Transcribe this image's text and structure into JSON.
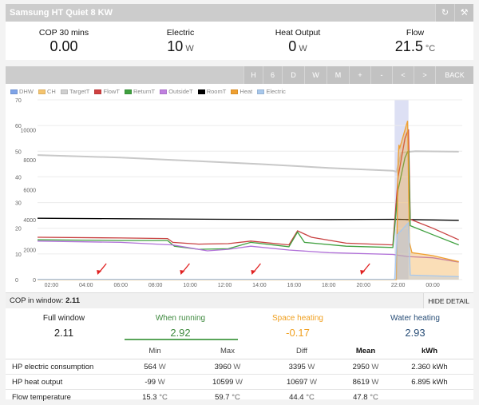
{
  "window": {
    "title": "Samsung HT Quiet 8 KW",
    "refresh_icon": "refresh-icon",
    "settings_icon": "wrench-icon"
  },
  "stats": [
    {
      "label": "COP 30 mins",
      "value": "0.00",
      "unit": ""
    },
    {
      "label": "Electric",
      "value": "10",
      "unit": "W"
    },
    {
      "label": "Heat Output",
      "value": "0",
      "unit": "W"
    },
    {
      "label": "Flow",
      "value": "21.5",
      "unit": "°C"
    }
  ],
  "nav": [
    "H",
    "6",
    "D",
    "W",
    "M",
    "+",
    "-",
    "<",
    ">",
    "BACK"
  ],
  "legend": [
    {
      "name": "DHW",
      "color": "#7fa4e8"
    },
    {
      "name": "CH",
      "color": "#f5c46e"
    },
    {
      "name": "TargetT",
      "color": "#d0d0d0"
    },
    {
      "name": "FlowT",
      "color": "#d04040"
    },
    {
      "name": "ReturnT",
      "color": "#3fa03f"
    },
    {
      "name": "OutsideT",
      "color": "#c080e0"
    },
    {
      "name": "RoomT",
      "color": "#000000"
    },
    {
      "name": "Heat",
      "color": "#f0a030"
    },
    {
      "name": "Electric",
      "color": "#a8c8ec"
    }
  ],
  "chart_data": {
    "type": "line",
    "left_axis": {
      "ticks": [
        "0",
        "10",
        "20",
        "30",
        "40",
        "50",
        "60",
        "70"
      ],
      "range": [
        0,
        70
      ]
    },
    "right_axis": {
      "ticks": [
        "0",
        "2000",
        "4000",
        "6000",
        "8000",
        "10000"
      ],
      "range": [
        0,
        12000
      ]
    },
    "x_ticks": [
      "02:00",
      "04:00",
      "06:00",
      "08:00",
      "10:00",
      "12:00",
      "14:00",
      "16:00",
      "18:00",
      "20:00",
      "22:00",
      "00:00"
    ],
    "x_range": [
      1.2,
      25.7
    ],
    "series": [
      {
        "name": "TargetT",
        "axis": "left",
        "color": "#c8c8c8",
        "points": [
          [
            1.2,
            48.5
          ],
          [
            6,
            47.5
          ],
          [
            10,
            46.3
          ],
          [
            14,
            45.0
          ],
          [
            18,
            43.5
          ],
          [
            21.7,
            42.4
          ],
          [
            21.9,
            42.0
          ],
          [
            22.2,
            49.5
          ],
          [
            23,
            50.0
          ],
          [
            25.5,
            49.8
          ]
        ]
      },
      {
        "name": "RoomT",
        "axis": "left",
        "color": "#000000",
        "points": [
          [
            1.2,
            23.9
          ],
          [
            6,
            23.7
          ],
          [
            12,
            23.5
          ],
          [
            18,
            23.4
          ],
          [
            22,
            23.5
          ],
          [
            22.5,
            23.4
          ],
          [
            25.5,
            23.1
          ]
        ]
      },
      {
        "name": "FlowT",
        "axis": "left",
        "color": "#c84040",
        "points": [
          [
            1.2,
            16.5
          ],
          [
            6,
            16.2
          ],
          [
            8.7,
            16.0
          ],
          [
            9.0,
            14.5
          ],
          [
            10.5,
            13.8
          ],
          [
            12.2,
            14.0
          ],
          [
            13.5,
            15.0
          ],
          [
            15.7,
            13.5
          ],
          [
            16.2,
            19.0
          ],
          [
            17,
            16.5
          ],
          [
            19,
            14.2
          ],
          [
            21.7,
            13.5
          ],
          [
            22.0,
            40.0
          ],
          [
            22.4,
            55.0
          ],
          [
            22.6,
            58.5
          ],
          [
            22.7,
            23.5
          ],
          [
            24,
            20.0
          ],
          [
            25.5,
            15.5
          ]
        ]
      },
      {
        "name": "ReturnT",
        "axis": "left",
        "color": "#3fa03f",
        "points": [
          [
            1.2,
            15.5
          ],
          [
            6,
            15.2
          ],
          [
            8.7,
            15.2
          ],
          [
            9.1,
            13.0
          ],
          [
            10.5,
            11.8
          ],
          [
            12.2,
            12.0
          ],
          [
            13.5,
            14.5
          ],
          [
            15.7,
            12.8
          ],
          [
            16.2,
            18.5
          ],
          [
            16.6,
            14.5
          ],
          [
            19,
            13.0
          ],
          [
            21.7,
            12.5
          ],
          [
            22.0,
            35.0
          ],
          [
            22.4,
            47.5
          ],
          [
            22.6,
            50.5
          ],
          [
            22.7,
            21.0
          ],
          [
            24,
            17.5
          ],
          [
            25.5,
            13.5
          ]
        ]
      },
      {
        "name": "OutsideT",
        "axis": "left",
        "color": "#b070d8",
        "points": [
          [
            1.2,
            15.0
          ],
          [
            6,
            14.5
          ],
          [
            9,
            13.5
          ],
          [
            11,
            11.2
          ],
          [
            12.2,
            11.8
          ],
          [
            13.5,
            13.0
          ],
          [
            15.7,
            11.5
          ],
          [
            18,
            10.5
          ],
          [
            21.7,
            9.8
          ],
          [
            22.5,
            9.0
          ],
          [
            24,
            8.5
          ],
          [
            25.5,
            6.8
          ]
        ]
      },
      {
        "name": "Heat",
        "axis": "right",
        "color": "#f0a030",
        "points": [
          [
            1.2,
            0
          ],
          [
            21.9,
            0
          ],
          [
            22.0,
            8000
          ],
          [
            22.05,
            9000
          ],
          [
            22.1,
            8800
          ],
          [
            22.4,
            10000
          ],
          [
            22.55,
            10600
          ],
          [
            22.65,
            2500
          ],
          [
            22.8,
            1800
          ],
          [
            24,
            1600
          ],
          [
            25.5,
            1200
          ]
        ]
      },
      {
        "name": "Electric",
        "axis": "right",
        "color": "#a8c8ec",
        "points": [
          [
            1.2,
            20
          ],
          [
            21.8,
            20
          ],
          [
            21.95,
            3000
          ],
          [
            22.6,
            3800
          ],
          [
            22.7,
            300
          ],
          [
            25.5,
            200
          ]
        ]
      }
    ],
    "highlight_band": [
      21.8,
      22.6
    ],
    "annotations": [
      4.8,
      9.6,
      13.7,
      20.0
    ]
  },
  "cop_bar": {
    "label": "COP in window:",
    "value": "2.11",
    "hide": "HIDE DETAIL"
  },
  "modes": [
    {
      "label": "Full window",
      "value": "2.11",
      "color": "#222222"
    },
    {
      "label": "When running",
      "value": "2.92",
      "color": "#3f8a3f"
    },
    {
      "label": "Space heating",
      "value": "-0.17",
      "color": "#f0a020"
    },
    {
      "label": "Water heating",
      "value": "2.93",
      "color": "#2a4f78"
    }
  ],
  "table": {
    "headers": [
      "Min",
      "Max",
      "Diff",
      "Mean",
      "kWh"
    ],
    "rows": [
      {
        "name": "HP electric consumption",
        "min": "564",
        "min_u": "W",
        "max": "3960",
        "max_u": "W",
        "diff": "3395",
        "diff_u": "W",
        "mean": "2950",
        "mean_u": "W",
        "kwh": "2.360 kWh"
      },
      {
        "name": "HP heat output",
        "min": "-99",
        "min_u": "W",
        "max": "10599",
        "max_u": "W",
        "diff": "10697",
        "diff_u": "W",
        "mean": "8619",
        "mean_u": "W",
        "kwh": "6.895 kWh"
      },
      {
        "name": "Flow temperature",
        "min": "15.3",
        "min_u": "°C",
        "max": "59.7",
        "max_u": "°C",
        "diff": "44.4",
        "diff_u": "°C",
        "mean": "47.8",
        "mean_u": "°C",
        "kwh": ""
      }
    ]
  }
}
